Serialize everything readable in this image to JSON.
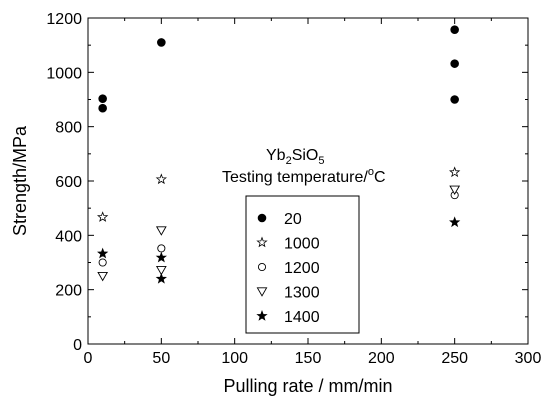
{
  "chart_data": {
    "type": "scatter",
    "xlabel": "Pulling rate / mm/min",
    "ylabel": "Strength/MPa",
    "xlim": [
      0,
      300
    ],
    "ylim": [
      0,
      1200
    ],
    "xticks": [
      0,
      50,
      100,
      150,
      200,
      250,
      300
    ],
    "yticks": [
      0,
      200,
      400,
      600,
      800,
      1000,
      1200
    ],
    "grid": false,
    "annotation": {
      "line1_base": "Yb",
      "line1_sub1": "2",
      "line1_mid": "SiO",
      "line1_sub2": "5",
      "line2_base": "Testing temperature/",
      "line2_sup": "o",
      "line2_unit": "C"
    },
    "legend_placement": "center-bottom",
    "series": [
      {
        "name": "20",
        "marker": "filled-circle",
        "points": [
          [
            10,
            903
          ],
          [
            10,
            868
          ],
          [
            50,
            1110
          ],
          [
            250,
            1157
          ],
          [
            250,
            1032
          ],
          [
            250,
            900
          ]
        ]
      },
      {
        "name": "1000",
        "marker": "open-star",
        "points": [
          [
            10,
            467
          ],
          [
            50,
            606
          ],
          [
            250,
            632
          ]
        ]
      },
      {
        "name": "1200",
        "marker": "open-circle",
        "points": [
          [
            10,
            300
          ],
          [
            50,
            352
          ],
          [
            250,
            548
          ]
        ]
      },
      {
        "name": "1300",
        "marker": "open-triangle-down",
        "points": [
          [
            10,
            250
          ],
          [
            50,
            418
          ],
          [
            50,
            272
          ],
          [
            250,
            568
          ]
        ]
      },
      {
        "name": "1400",
        "marker": "filled-star",
        "points": [
          [
            10,
            333
          ],
          [
            50,
            318
          ],
          [
            50,
            240
          ],
          [
            250,
            448
          ]
        ]
      }
    ]
  }
}
